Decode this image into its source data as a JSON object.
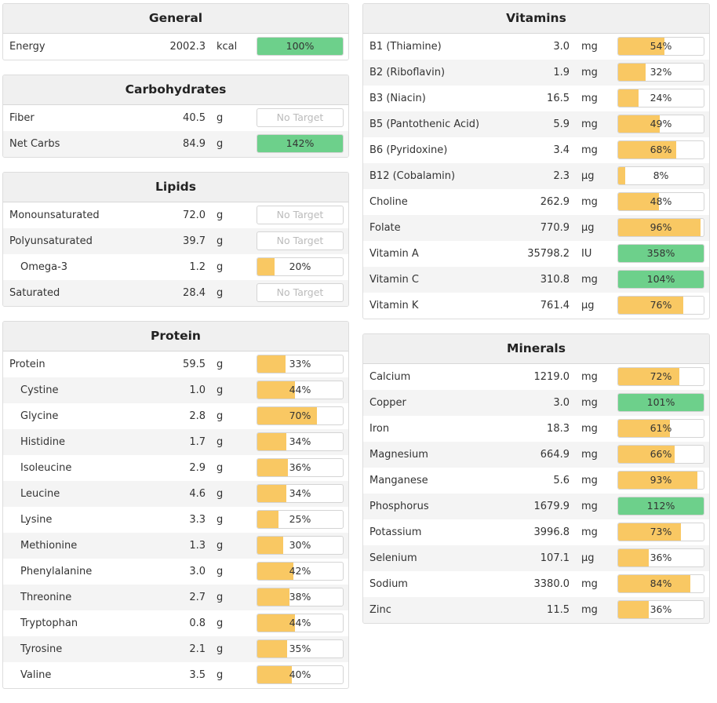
{
  "colors": {
    "green": "#6dd08b",
    "yellow": "#f9c863",
    "empty": "#ffffff"
  },
  "no_target_label": "No Target",
  "left": [
    {
      "title": "General",
      "rows": [
        {
          "name": "Energy",
          "amount": "2002.3",
          "unit": "kcal",
          "pct": "100%",
          "fill": 1.0,
          "color": "green"
        }
      ]
    },
    {
      "title": "Carbohydrates",
      "rows": [
        {
          "name": "Fiber",
          "amount": "40.5",
          "unit": "g",
          "pct": "No Target",
          "fill": 0
        },
        {
          "name": "Net Carbs",
          "amount": "84.9",
          "unit": "g",
          "pct": "142%",
          "fill": 1.0,
          "color": "green"
        }
      ]
    },
    {
      "title": "Lipids",
      "rows": [
        {
          "name": "Monounsaturated",
          "amount": "72.0",
          "unit": "g",
          "pct": "No Target",
          "fill": 0
        },
        {
          "name": "Polyunsaturated",
          "amount": "39.7",
          "unit": "g",
          "pct": "No Target",
          "fill": 0
        },
        {
          "name": "Omega-3",
          "amount": "1.2",
          "unit": "g",
          "pct": "20%",
          "fill": 0.2,
          "color": "yellow",
          "indent": true
        },
        {
          "name": "Saturated",
          "amount": "28.4",
          "unit": "g",
          "pct": "No Target",
          "fill": 0
        }
      ]
    },
    {
      "title": "Protein",
      "rows": [
        {
          "name": "Protein",
          "amount": "59.5",
          "unit": "g",
          "pct": "33%",
          "fill": 0.33,
          "color": "yellow"
        },
        {
          "name": "Cystine",
          "amount": "1.0",
          "unit": "g",
          "pct": "44%",
          "fill": 0.44,
          "color": "yellow",
          "indent": true
        },
        {
          "name": "Glycine",
          "amount": "2.8",
          "unit": "g",
          "pct": "70%",
          "fill": 0.7,
          "color": "yellow",
          "indent": true
        },
        {
          "name": "Histidine",
          "amount": "1.7",
          "unit": "g",
          "pct": "34%",
          "fill": 0.34,
          "color": "yellow",
          "indent": true
        },
        {
          "name": "Isoleucine",
          "amount": "2.9",
          "unit": "g",
          "pct": "36%",
          "fill": 0.36,
          "color": "yellow",
          "indent": true
        },
        {
          "name": "Leucine",
          "amount": "4.6",
          "unit": "g",
          "pct": "34%",
          "fill": 0.34,
          "color": "yellow",
          "indent": true
        },
        {
          "name": "Lysine",
          "amount": "3.3",
          "unit": "g",
          "pct": "25%",
          "fill": 0.25,
          "color": "yellow",
          "indent": true
        },
        {
          "name": "Methionine",
          "amount": "1.3",
          "unit": "g",
          "pct": "30%",
          "fill": 0.3,
          "color": "yellow",
          "indent": true
        },
        {
          "name": "Phenylalanine",
          "amount": "3.0",
          "unit": "g",
          "pct": "42%",
          "fill": 0.42,
          "color": "yellow",
          "indent": true
        },
        {
          "name": "Threonine",
          "amount": "2.7",
          "unit": "g",
          "pct": "38%",
          "fill": 0.38,
          "color": "yellow",
          "indent": true
        },
        {
          "name": "Tryptophan",
          "amount": "0.8",
          "unit": "g",
          "pct": "44%",
          "fill": 0.44,
          "color": "yellow",
          "indent": true
        },
        {
          "name": "Tyrosine",
          "amount": "2.1",
          "unit": "g",
          "pct": "35%",
          "fill": 0.35,
          "color": "yellow",
          "indent": true
        },
        {
          "name": "Valine",
          "amount": "3.5",
          "unit": "g",
          "pct": "40%",
          "fill": 0.4,
          "color": "yellow",
          "indent": true
        }
      ]
    }
  ],
  "right": [
    {
      "title": "Vitamins",
      "rows": [
        {
          "name": "B1 (Thiamine)",
          "amount": "3.0",
          "unit": "mg",
          "pct": "54%",
          "fill": 0.54,
          "color": "yellow"
        },
        {
          "name": "B2 (Riboflavin)",
          "amount": "1.9",
          "unit": "mg",
          "pct": "32%",
          "fill": 0.32,
          "color": "yellow"
        },
        {
          "name": "B3 (Niacin)",
          "amount": "16.5",
          "unit": "mg",
          "pct": "24%",
          "fill": 0.24,
          "color": "yellow"
        },
        {
          "name": "B5 (Pantothenic Acid)",
          "amount": "5.9",
          "unit": "mg",
          "pct": "49%",
          "fill": 0.49,
          "color": "yellow"
        },
        {
          "name": "B6 (Pyridoxine)",
          "amount": "3.4",
          "unit": "mg",
          "pct": "68%",
          "fill": 0.68,
          "color": "yellow"
        },
        {
          "name": "B12 (Cobalamin)",
          "amount": "2.3",
          "unit": "µg",
          "pct": "8%",
          "fill": 0.08,
          "color": "yellow"
        },
        {
          "name": "Choline",
          "amount": "262.9",
          "unit": "mg",
          "pct": "48%",
          "fill": 0.48,
          "color": "yellow"
        },
        {
          "name": "Folate",
          "amount": "770.9",
          "unit": "µg",
          "pct": "96%",
          "fill": 0.96,
          "color": "yellow"
        },
        {
          "name": "Vitamin A",
          "amount": "35798.2",
          "unit": "IU",
          "pct": "358%",
          "fill": 1.0,
          "color": "green"
        },
        {
          "name": "Vitamin C",
          "amount": "310.8",
          "unit": "mg",
          "pct": "104%",
          "fill": 1.0,
          "color": "green"
        },
        {
          "name": "Vitamin K",
          "amount": "761.4",
          "unit": "µg",
          "pct": "76%",
          "fill": 0.76,
          "color": "yellow"
        }
      ]
    },
    {
      "title": "Minerals",
      "rows": [
        {
          "name": "Calcium",
          "amount": "1219.0",
          "unit": "mg",
          "pct": "72%",
          "fill": 0.72,
          "color": "yellow"
        },
        {
          "name": "Copper",
          "amount": "3.0",
          "unit": "mg",
          "pct": "101%",
          "fill": 1.0,
          "color": "green"
        },
        {
          "name": "Iron",
          "amount": "18.3",
          "unit": "mg",
          "pct": "61%",
          "fill": 0.61,
          "color": "yellow"
        },
        {
          "name": "Magnesium",
          "amount": "664.9",
          "unit": "mg",
          "pct": "66%",
          "fill": 0.66,
          "color": "yellow"
        },
        {
          "name": "Manganese",
          "amount": "5.6",
          "unit": "mg",
          "pct": "93%",
          "fill": 0.93,
          "color": "yellow"
        },
        {
          "name": "Phosphorus",
          "amount": "1679.9",
          "unit": "mg",
          "pct": "112%",
          "fill": 1.0,
          "color": "green"
        },
        {
          "name": "Potassium",
          "amount": "3996.8",
          "unit": "mg",
          "pct": "73%",
          "fill": 0.73,
          "color": "yellow"
        },
        {
          "name": "Selenium",
          "amount": "107.1",
          "unit": "µg",
          "pct": "36%",
          "fill": 0.36,
          "color": "yellow"
        },
        {
          "name": "Sodium",
          "amount": "3380.0",
          "unit": "mg",
          "pct": "84%",
          "fill": 0.84,
          "color": "yellow"
        },
        {
          "name": "Zinc",
          "amount": "11.5",
          "unit": "mg",
          "pct": "36%",
          "fill": 0.36,
          "color": "yellow"
        }
      ]
    }
  ]
}
